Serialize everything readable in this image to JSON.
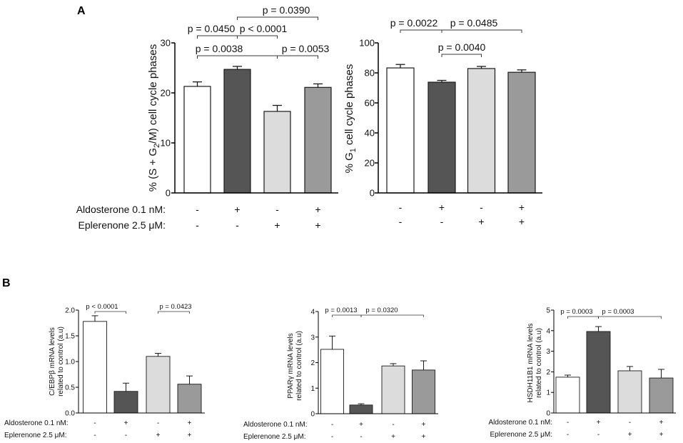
{
  "panel_labels": [
    "A",
    "B"
  ],
  "chart_data": [
    {
      "type": "bar",
      "ylabel_lines": [
        [
          {
            "text": "% (S + G"
          },
          {
            "text": "2",
            "sub": true
          },
          {
            "text": "/M) cell cycle phases"
          }
        ]
      ],
      "ylim": [
        0,
        30
      ],
      "yticks": [
        0,
        10,
        20,
        30
      ],
      "ytick_labels": [
        "0",
        "10",
        "20",
        "30"
      ],
      "values": [
        21.3,
        24.7,
        16.3,
        21.1
      ],
      "errors": [
        0.9,
        0.6,
        1.2,
        0.7
      ],
      "colors": [
        "#ffffff",
        "#555555",
        "#dcdcdc",
        "#9a9a9a"
      ],
      "treatments": [
        {
          "label": "Aldosterone 0.1 nM:",
          "signs": [
            "-",
            "+",
            "-",
            "+"
          ]
        },
        {
          "label": "Eplerenone 2.5 μM:",
          "signs": [
            "-",
            "-",
            "+",
            "+"
          ]
        }
      ],
      "comparisons": [
        {
          "groups": [
            2,
            4
          ],
          "label": "p = 0.0390"
        },
        {
          "groups": [
            1,
            2
          ],
          "label": "p = 0.0450"
        },
        {
          "groups": [
            2,
            3
          ],
          "label": "p < 0.0001"
        },
        {
          "groups": [
            1,
            3
          ],
          "label": "p = 0.0038"
        },
        {
          "groups": [
            3,
            4
          ],
          "label": "p = 0.0053"
        }
      ]
    },
    {
      "type": "bar",
      "ylabel_lines": [
        [
          {
            "text": "% G"
          },
          {
            "text": "1",
            "sub": true
          },
          {
            "text": " cell cycle phases"
          }
        ]
      ],
      "ylim": [
        0,
        100
      ],
      "yticks": [
        0,
        20,
        40,
        60,
        80,
        100
      ],
      "ytick_labels": [
        "0",
        "20",
        "40",
        "60",
        "80",
        "100"
      ],
      "values": [
        83.3,
        73.8,
        82.9,
        80.4
      ],
      "errors": [
        2.3,
        1.2,
        1.4,
        1.6
      ],
      "colors": [
        "#ffffff",
        "#555555",
        "#dcdcdc",
        "#9a9a9a"
      ],
      "treatments": [
        {
          "signs": [
            "-",
            "+",
            "-",
            "+"
          ]
        },
        {
          "signs": [
            "-",
            "-",
            "+",
            "+"
          ]
        }
      ],
      "comparisons": [
        {
          "groups": [
            1,
            2
          ],
          "label": "p = 0.0022"
        },
        {
          "groups": [
            2,
            4
          ],
          "label": "p = 0.0485"
        },
        {
          "groups": [
            2,
            3
          ],
          "label": "p = 0.0040"
        }
      ]
    },
    {
      "type": "bar",
      "ylabel_lines": [
        [
          {
            "text": "C/EBPβ mRNA levels"
          }
        ],
        [
          {
            "text": "related to control (a.u)"
          }
        ]
      ],
      "ylim": [
        0,
        2
      ],
      "yticks": [
        0,
        0.5,
        1,
        1.5,
        2
      ],
      "ytick_labels": [
        "0.0",
        "0.5",
        "1.0",
        "1.5",
        "2.0"
      ],
      "values": [
        1.78,
        0.42,
        1.1,
        0.56
      ],
      "errors": [
        0.11,
        0.16,
        0.06,
        0.16
      ],
      "colors": [
        "#ffffff",
        "#555555",
        "#dcdcdc",
        "#9a9a9a"
      ],
      "treatments": [
        {
          "label": "Aldosterone 0.1 nM:",
          "signs": [
            "-",
            "+",
            "-",
            "+"
          ]
        },
        {
          "label": "Eplerenone 2.5 μM:",
          "signs": [
            "-",
            "-",
            "+",
            "+"
          ]
        }
      ],
      "comparisons": [
        {
          "groups": [
            1,
            2
          ],
          "label": "p < 0.0001"
        },
        {
          "groups": [
            3,
            4
          ],
          "label": "p = 0.0423"
        }
      ]
    },
    {
      "type": "bar",
      "ylabel_lines": [
        [
          {
            "text": "PPARγ mRNA levels"
          }
        ],
        [
          {
            "text": "related to control (a.u)"
          }
        ]
      ],
      "ylim": [
        0,
        4
      ],
      "yticks": [
        0,
        1,
        2,
        3,
        4
      ],
      "ytick_labels": [
        "0",
        "1",
        "2",
        "3",
        "4"
      ],
      "values": [
        2.52,
        0.34,
        1.87,
        1.71
      ],
      "errors": [
        0.52,
        0.05,
        0.09,
        0.36
      ],
      "colors": [
        "#ffffff",
        "#555555",
        "#dcdcdc",
        "#9a9a9a"
      ],
      "treatments": [
        {
          "label": "Aldosterone 0.1 nM:",
          "signs": [
            "-",
            "+",
            "-",
            "+"
          ]
        },
        {
          "label": "Eplerenone 2.5 μM:",
          "signs": [
            "-",
            "-",
            "+",
            "+"
          ]
        }
      ],
      "comparisons": [
        {
          "groups": [
            1,
            2
          ],
          "label": "p = 0.0013"
        },
        {
          "groups": [
            2,
            4
          ],
          "label": "p = 0.0320"
        }
      ]
    },
    {
      "type": "bar",
      "ylabel_lines": [
        [
          {
            "text": "HSDH11B1 mRNA levels"
          }
        ],
        [
          {
            "text": "related to control (a.u)"
          }
        ]
      ],
      "ylim": [
        0,
        5
      ],
      "yticks": [
        0,
        1,
        2,
        3,
        4,
        5
      ],
      "ytick_labels": [
        "0",
        "1",
        "2",
        "3",
        "4",
        "5"
      ],
      "values": [
        1.74,
        3.96,
        2.05,
        1.7
      ],
      "errors": [
        0.1,
        0.24,
        0.21,
        0.42
      ],
      "colors": [
        "#ffffff",
        "#555555",
        "#dcdcdc",
        "#9a9a9a"
      ],
      "treatments": [
        {
          "label": "Aldosterone 0.1 nM:",
          "signs": [
            "-",
            "+",
            "-",
            "+"
          ]
        },
        {
          "label": "Eplerenone 2.5 μM:",
          "signs": [
            "-",
            "-",
            "+",
            "+"
          ]
        }
      ],
      "comparisons": [
        {
          "groups": [
            1,
            2
          ],
          "label": "p = 0.0003"
        },
        {
          "groups": [
            2,
            4
          ],
          "label": "p = 0.0003"
        }
      ]
    }
  ]
}
